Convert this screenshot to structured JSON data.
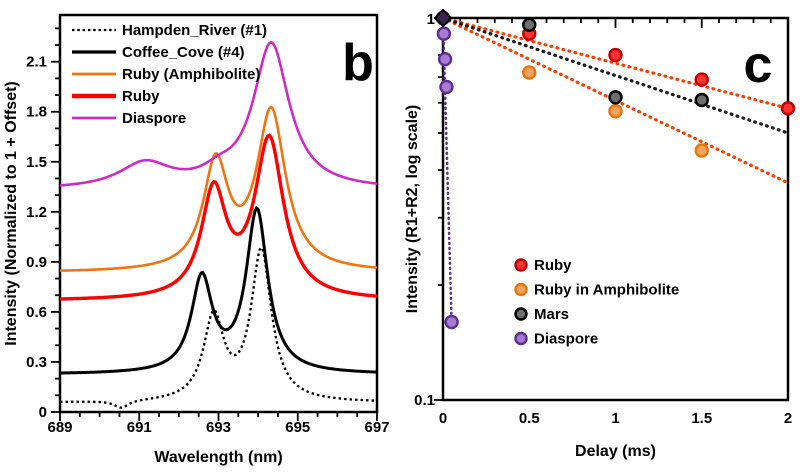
{
  "figure": {
    "background": "#ffffff",
    "panel_letters": {
      "b": "b",
      "c": "c"
    }
  },
  "chart_data": [
    {
      "id": "b",
      "type": "line",
      "panel_label": "b",
      "xlabel": "Wavelength (nm)",
      "ylabel": "Intensity (Normalized to 1 + Offset)",
      "xlim": [
        689,
        697
      ],
      "ylim": [
        0,
        2.38
      ],
      "xticks": [
        "689",
        "691",
        "693",
        "695",
        "697"
      ],
      "yticks": [
        "0",
        "0.3",
        "0.6",
        "0.9",
        "1.2",
        "1.5",
        "1.8",
        "2.1"
      ],
      "x_minor_step": 0.5,
      "y_minor_step": 0.1,
      "series": [
        {
          "name": "Hampden_River (#1)",
          "color": "#000000",
          "line_style": "dotted",
          "line_width": 2.3,
          "offset": 0.055,
          "peaks_nm_height_hwhm": [
            [
              692.88,
              0.5,
              0.31
            ],
            [
              694.08,
              0.9,
              0.31
            ],
            [
              690.55,
              -0.045,
              0.22
            ]
          ]
        },
        {
          "name": "Coffee_Cove (#4)",
          "color": "#000000",
          "line_style": "solid",
          "line_width": 3,
          "offset": 0.225,
          "peaks_nm_height_hwhm": [
            [
              692.58,
              0.56,
              0.32
            ],
            [
              693.97,
              0.97,
              0.33
            ]
          ]
        },
        {
          "name": "Ruby (Amphibolite)",
          "color": "#F0750F",
          "line_style": "solid",
          "line_width": 2.6,
          "offset": 0.835,
          "peaks_nm_height_hwhm": [
            [
              692.93,
              0.63,
              0.38
            ],
            [
              694.33,
              0.95,
              0.44
            ]
          ]
        },
        {
          "name": "Ruby",
          "color": "#FE0000",
          "line_style": "solid",
          "line_width": 3.4,
          "offset": 0.665,
          "peaks_nm_height_hwhm": [
            [
              692.88,
              0.63,
              0.38
            ],
            [
              694.28,
              0.95,
              0.44
            ]
          ]
        },
        {
          "name": "Diaspore",
          "color": "#CF2BC4",
          "line_style": "solid",
          "line_width": 2.6,
          "offset": 1.33,
          "peaks_nm_height_hwhm": [
            [
              691.15,
              0.15,
              0.8
            ],
            [
              694.33,
              0.87,
              0.55
            ],
            [
              693.0,
              0.06,
              0.5
            ]
          ]
        }
      ],
      "legend_order": [
        "Hampden_River (#1)",
        "Coffee_Cove (#4)",
        "Ruby (Amphibolite)",
        "Ruby",
        "Diaspore"
      ]
    },
    {
      "id": "c",
      "type": "scatter",
      "panel_label": "c",
      "xlabel": "Delay (ms)",
      "ylabel": "Intensity (R1+R2, log scale)",
      "xlim": [
        0,
        2
      ],
      "ylim_log": [
        0.1,
        1
      ],
      "x_minor_step": 0.1,
      "xticks": [
        "0",
        "0.5",
        "1",
        "1.5",
        "2"
      ],
      "ytick_labels": [
        "1",
        "0.1"
      ],
      "y_minor_values": [
        0.9,
        0.8,
        0.7,
        0.6,
        0.5,
        0.4,
        0.3,
        0.2
      ],
      "series": [
        {
          "name": "Ruby",
          "marker_fill": "#FF3333",
          "marker_stroke": "#C00000",
          "points": [
            [
              0,
              1
            ],
            [
              0.5,
              0.91
            ],
            [
              1,
              0.8
            ],
            [
              1.5,
              0.69
            ],
            [
              2,
              0.58
            ]
          ],
          "fit_line": {
            "color": "#FF3C00",
            "from": [
              0,
              1
            ],
            "to": [
              2,
              0.58
            ]
          }
        },
        {
          "name": "Ruby in Amphibolite",
          "marker_fill": "#F5A25D",
          "marker_stroke": "#E8740E",
          "points": [
            [
              0,
              1
            ],
            [
              0.5,
              0.72
            ],
            [
              1,
              0.57
            ],
            [
              1.5,
              0.45
            ]
          ],
          "fit_line": {
            "color": "#FF3C00",
            "from": [
              0,
              1
            ],
            "to": [
              2,
              0.37
            ]
          }
        },
        {
          "name": "Mars",
          "marker_fill": "#6E6E6E",
          "marker_stroke": "#000000",
          "points": [
            [
              0,
              1
            ],
            [
              0.5,
              0.96
            ],
            [
              1,
              0.62
            ],
            [
              1.5,
              0.61
            ]
          ],
          "fit_line": {
            "color": "#1A1A1A",
            "from": [
              0,
              1
            ],
            "to": [
              2,
              0.5
            ]
          }
        },
        {
          "name": "Diaspore",
          "marker_fill": "#A77BD1",
          "marker_stroke": "#5F2E91",
          "points": [
            [
              0,
              1
            ],
            [
              0.005,
              0.91
            ],
            [
              0.012,
              0.78
            ],
            [
              0.02,
              0.66
            ],
            [
              0.05,
              0.16
            ]
          ],
          "fit_line": {
            "color": "#5F2E91",
            "from": [
              0,
              1
            ],
            "to": [
              0.05,
              0.16
            ]
          }
        }
      ],
      "origin_overlap_marker": {
        "shape": "diamond",
        "fill": "#3A2550",
        "stroke": "#000000"
      },
      "legend_order": [
        "Ruby",
        "Ruby in Amphibolite",
        "Mars",
        "Diaspore"
      ]
    }
  ]
}
